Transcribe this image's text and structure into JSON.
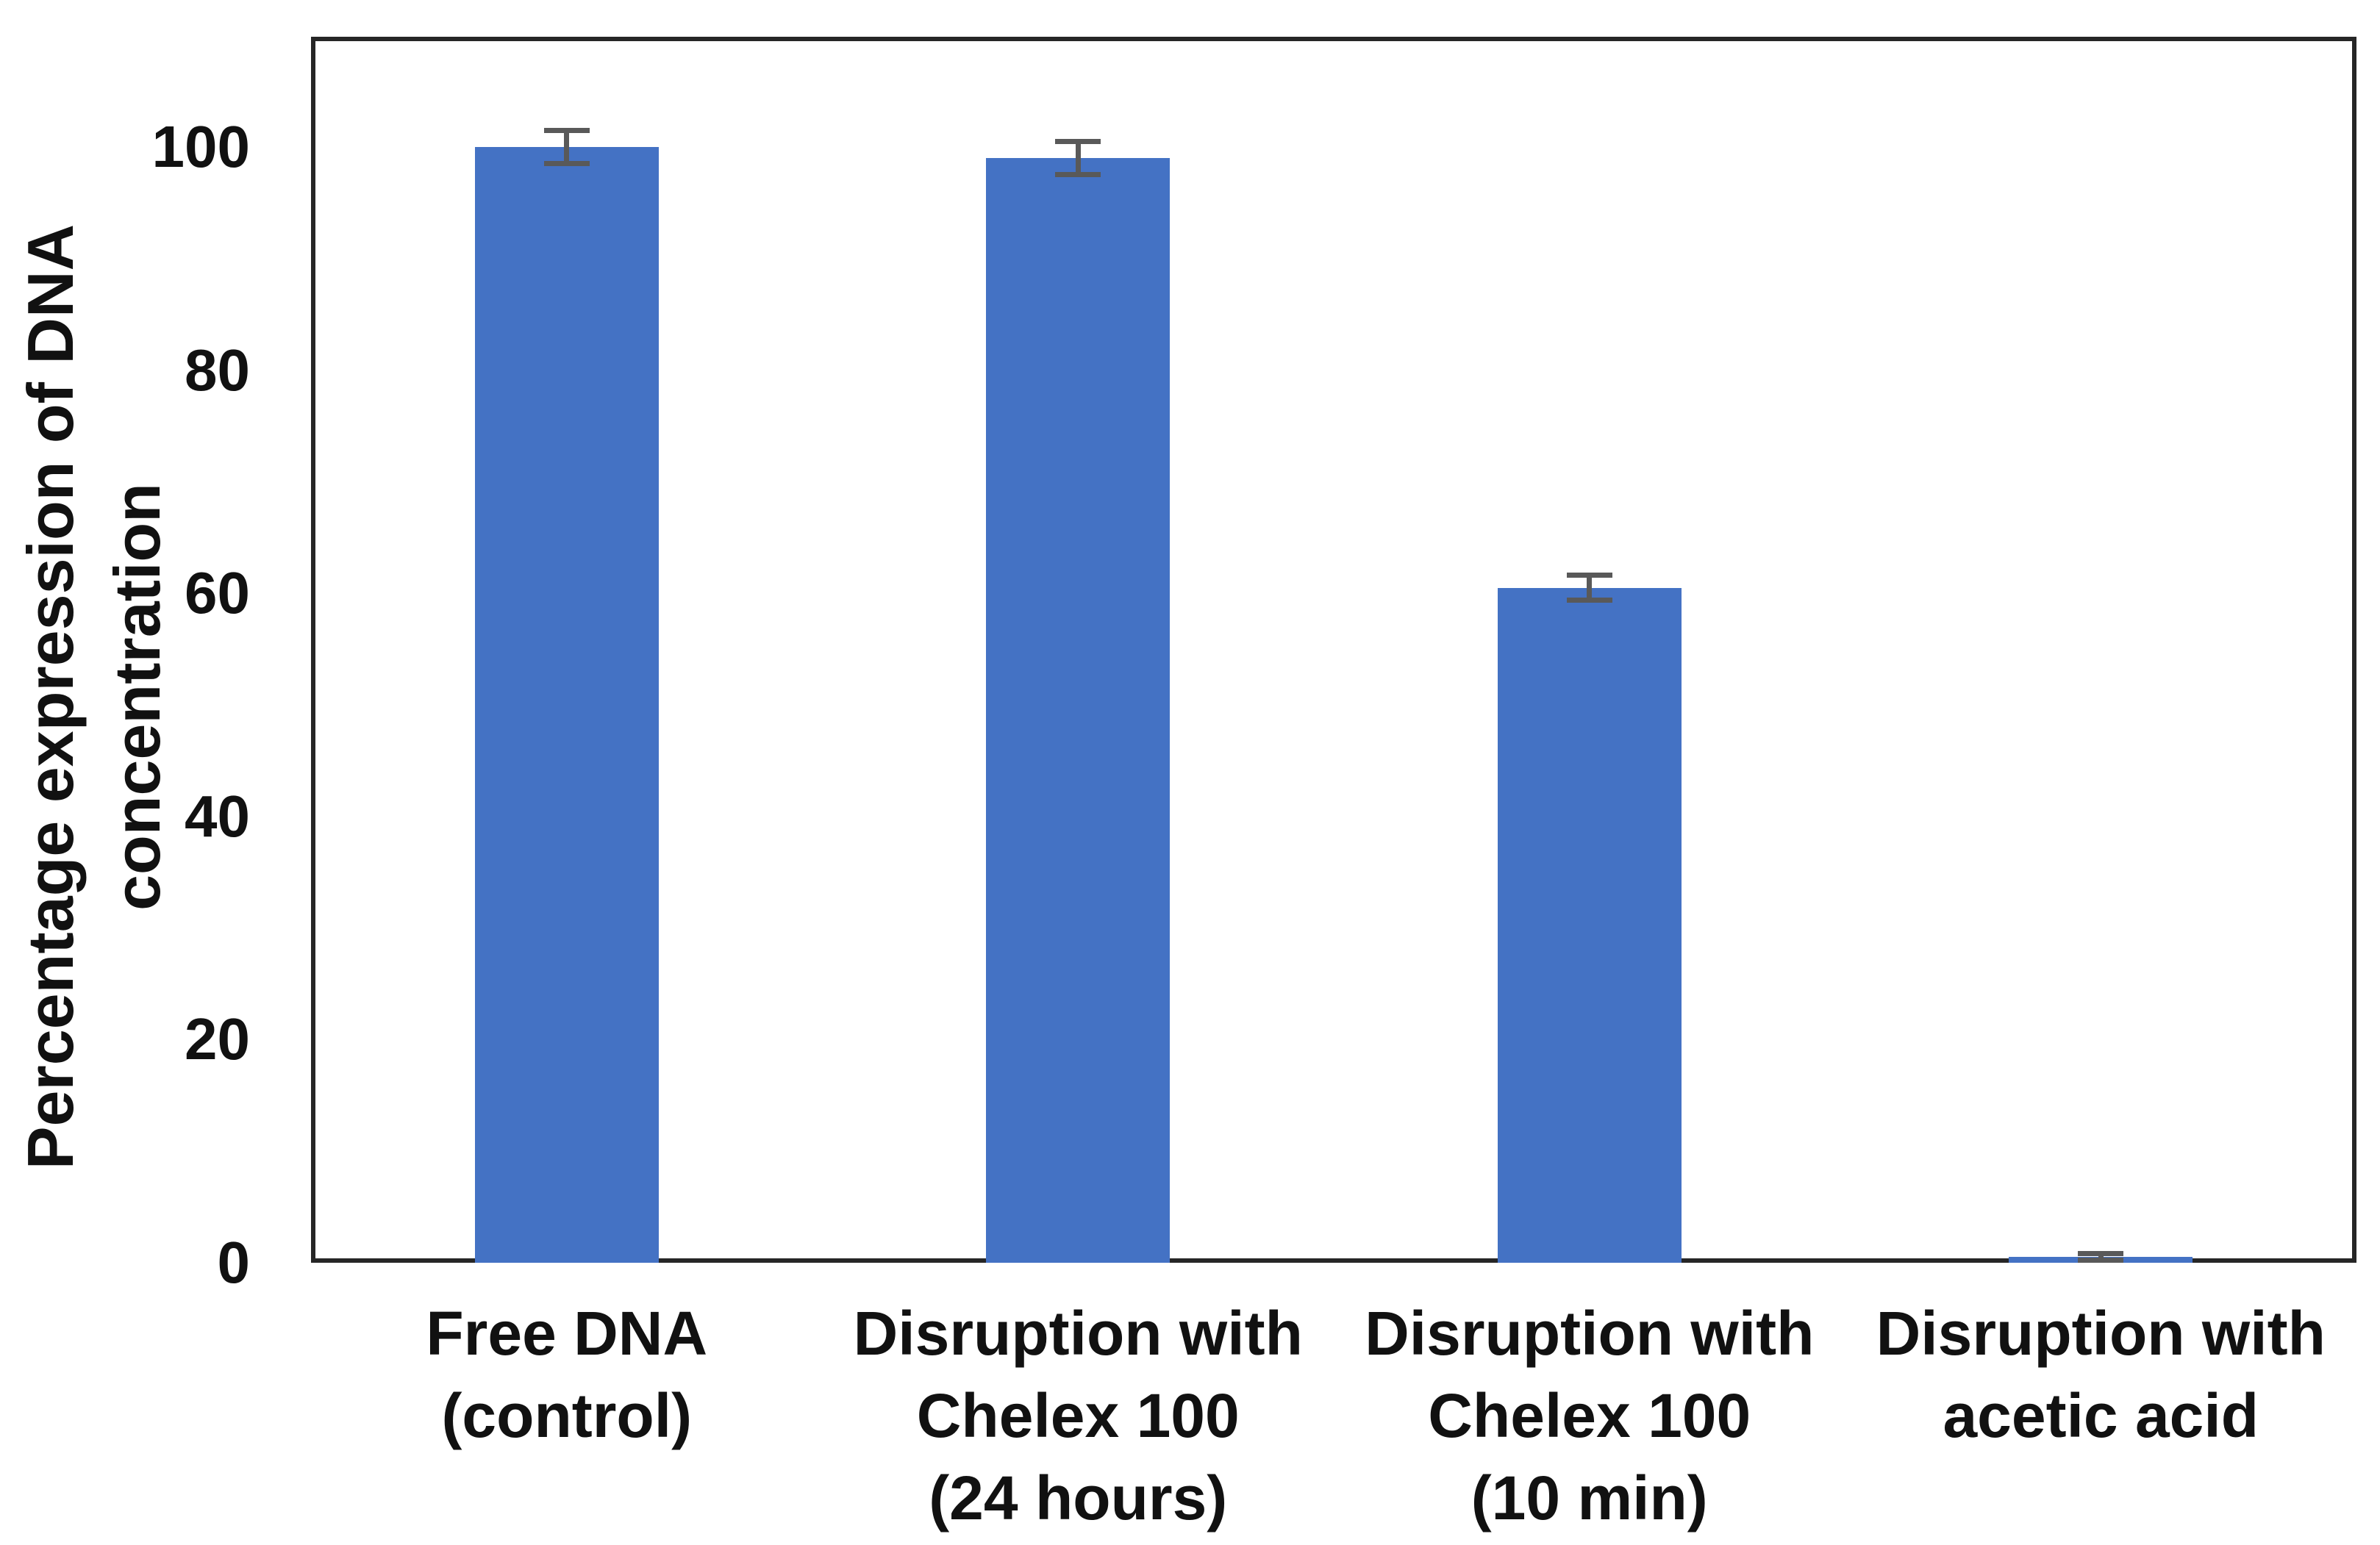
{
  "chart_data": {
    "type": "bar",
    "title": "",
    "xlabel": "",
    "ylabel_lines": [
      "Percentage expression of DNA",
      "concentration"
    ],
    "yticks": [
      0,
      20,
      40,
      60,
      80,
      100
    ],
    "ylim": [
      0,
      110
    ],
    "grid": false,
    "legend": false,
    "categories": [
      {
        "lines": [
          "Free DNA",
          "(control)"
        ]
      },
      {
        "lines": [
          "Disruption with",
          "Chelex 100",
          "(24 hours)"
        ]
      },
      {
        "lines": [
          "Disruption with",
          "Chelex 100",
          "(10 min)"
        ]
      },
      {
        "lines": [
          "Disruption with",
          "acetic acid"
        ]
      }
    ],
    "values": [
      100,
      99,
      60.5,
      0.5
    ],
    "error_bars": [
      1.5,
      1.5,
      1.1,
      0.3
    ],
    "bar_color": "#4472C4",
    "error_color": "#595959",
    "frame_color": "#262626",
    "text_color": "#111111",
    "background": "#ffffff"
  }
}
